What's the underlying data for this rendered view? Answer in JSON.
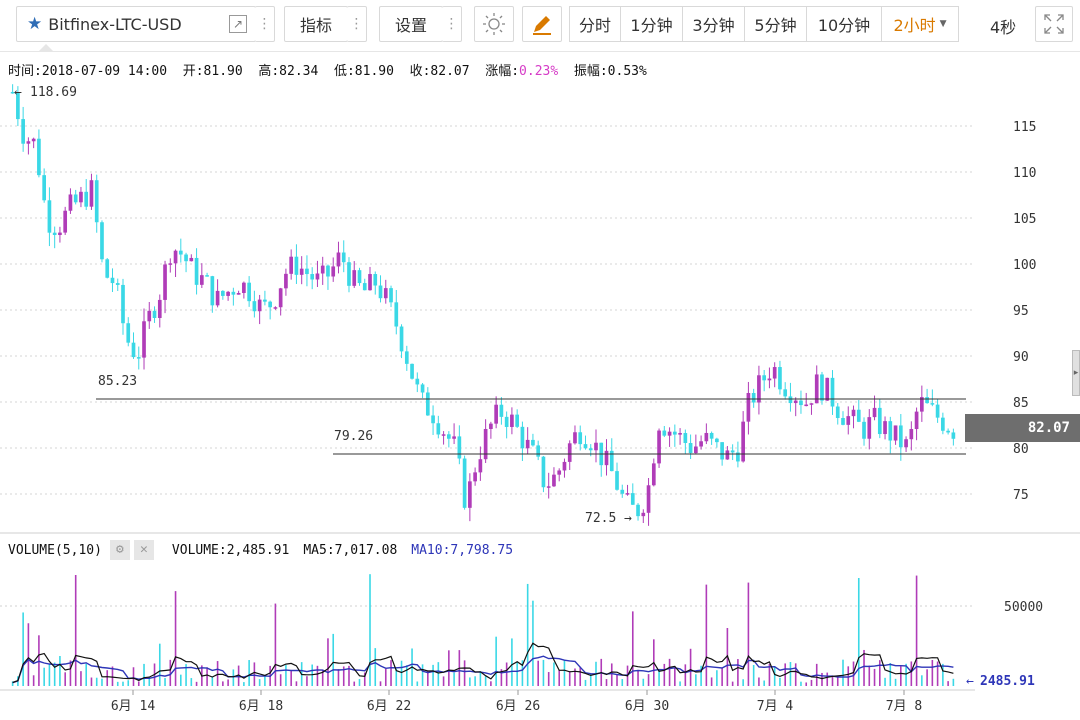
{
  "toolbar": {
    "symbol": "Bitfinex-LTC-USD",
    "indicators_label": "指标",
    "settings_label": "设置",
    "periods": [
      "分时",
      "1分钟",
      "3分钟",
      "5分钟",
      "10分钟"
    ],
    "active_period": "2小时",
    "refresh_label": "4秒"
  },
  "info_bar": {
    "time_label": "时间:",
    "time": "2018-07-09 14:00",
    "open_label": "开:",
    "open": "81.90",
    "high_label": "高:",
    "high": "82.34",
    "low_label": "低:",
    "low": "81.90",
    "close_label": "收:",
    "close": "82.07",
    "change_label": "涨幅:",
    "change": "0.23%",
    "amplitude_label": "振幅:",
    "amplitude": "0.53%"
  },
  "price_chart": {
    "high_marker": "118.69",
    "low_marker": "72.5",
    "hline_upper_label": "85.23",
    "hline_lower_label": "79.26",
    "current_price": "82.07",
    "y_ticks": [
      "115",
      "110",
      "105",
      "100",
      "95",
      "90",
      "85",
      "80",
      "75"
    ]
  },
  "volume": {
    "title": "VOLUME(5,10)",
    "volume_label": "VOLUME:",
    "volume_value": "2,485.91",
    "ma5_label": "MA5:",
    "ma5_value": "7,017.08",
    "ma10_label": "MA10:",
    "ma10_value": "7,798.75",
    "y_tick": "50000",
    "current_marker": "2485.91"
  },
  "x_axis": {
    "labels": [
      "6月 14",
      "6月 18",
      "6月 22",
      "6月 26",
      "6月 30",
      "7月 4",
      "7月 8"
    ]
  },
  "colors": {
    "up": "#b03cb8",
    "down": "#3ad8e6",
    "ma5": "#111111",
    "ma10": "#2e36b8",
    "accent": "#d97a00",
    "change_pink": "#d63cc7"
  },
  "chart_data": {
    "type": "candlestick",
    "x_labels": [
      "6月 14",
      "6月 18",
      "6月 22",
      "6月 26",
      "6月 30",
      "7月 4",
      "7月 8"
    ],
    "y_range": [
      72,
      119
    ],
    "price_path": [
      118.7,
      114,
      113,
      105,
      104,
      106,
      107,
      108,
      99,
      98,
      92,
      90,
      94,
      97,
      102,
      101,
      99,
      98,
      96,
      97,
      98,
      97,
      95,
      96,
      99,
      100,
      99,
      98,
      99,
      101,
      98,
      97,
      98,
      96,
      93,
      89,
      85,
      84,
      82,
      80,
      74,
      79,
      82,
      84,
      83,
      81,
      79,
      76,
      77,
      80,
      82,
      81,
      79,
      77,
      74,
      73,
      75,
      83,
      82,
      81,
      80,
      81,
      80,
      79,
      80,
      85,
      87,
      89,
      87,
      86,
      85,
      87,
      86,
      84,
      83,
      82,
      83,
      82,
      81,
      80,
      85,
      84,
      83,
      82
    ],
    "horizontal_lines": [
      85.23,
      79.26
    ],
    "volume_range": [
      0,
      70000
    ],
    "volume_current": 2485.91,
    "ma5": 7017.08,
    "ma10": 7798.75
  }
}
